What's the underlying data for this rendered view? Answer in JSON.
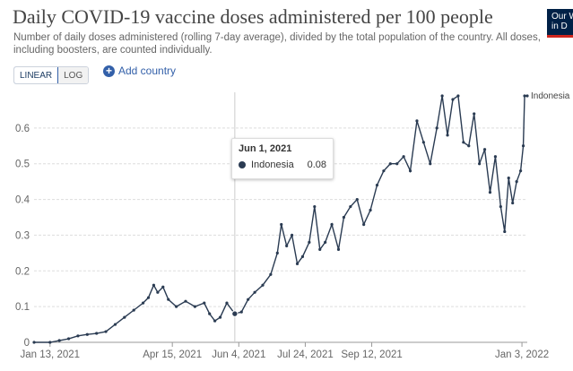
{
  "header": {
    "title": "Daily COVID-19 vaccine doses administered per 100 people",
    "subtitle": "Number of daily doses administered (rolling 7-day average), divided by the total population of the country. All doses, including boosters, are counted individually.",
    "logo_line1": "Our W",
    "logo_line2": "in D"
  },
  "controls": {
    "linear_label": "LINEAR",
    "log_label": "LOG",
    "add_country_label": "Add country"
  },
  "tooltip": {
    "date": "Jun 1, 2021",
    "series": "Indonesia",
    "value": "0.08"
  },
  "colors": {
    "line": "#2a3b52",
    "accent": "#3360a9",
    "grid": "#dddddd"
  },
  "chart_data": {
    "type": "line",
    "title": "Daily COVID-19 vaccine doses administered per 100 people",
    "xlabel": "",
    "ylabel": "",
    "ylim": [
      0,
      0.7
    ],
    "yticks": [
      0,
      0.1,
      0.2,
      0.3,
      0.4,
      0.5,
      0.6
    ],
    "ytick_labels": [
      "0",
      "0.1",
      "0.2",
      "0.3",
      "0.4",
      "0.5",
      "0.6"
    ],
    "xticks": [
      "2021-01-13",
      "2021-04-15",
      "2021-06-04",
      "2021-07-24",
      "2021-09-12",
      "2022-01-03"
    ],
    "xtick_labels": [
      "Jan 13, 2021",
      "Apr 15, 2021",
      "Jun 4, 2021",
      "Jul 24, 2021",
      "Sep 12, 2021",
      "Jan 3, 2022"
    ],
    "xrange": [
      "2021-01-01",
      "2022-01-07"
    ],
    "grid": true,
    "hover_date": "2021-06-01",
    "series": [
      {
        "name": "Indonesia",
        "points": [
          [
            "2021-01-01",
            0.0
          ],
          [
            "2021-01-13",
            0.0
          ],
          [
            "2021-01-20",
            0.005
          ],
          [
            "2021-01-27",
            0.01
          ],
          [
            "2021-02-03",
            0.018
          ],
          [
            "2021-02-10",
            0.022
          ],
          [
            "2021-02-17",
            0.025
          ],
          [
            "2021-02-24",
            0.03
          ],
          [
            "2021-03-03",
            0.05
          ],
          [
            "2021-03-10",
            0.07
          ],
          [
            "2021-03-17",
            0.09
          ],
          [
            "2021-03-24",
            0.11
          ],
          [
            "2021-03-28",
            0.125
          ],
          [
            "2021-04-01",
            0.16
          ],
          [
            "2021-04-04",
            0.14
          ],
          [
            "2021-04-08",
            0.155
          ],
          [
            "2021-04-12",
            0.12
          ],
          [
            "2021-04-18",
            0.1
          ],
          [
            "2021-04-25",
            0.115
          ],
          [
            "2021-05-02",
            0.1
          ],
          [
            "2021-05-09",
            0.11
          ],
          [
            "2021-05-13",
            0.08
          ],
          [
            "2021-05-17",
            0.06
          ],
          [
            "2021-05-21",
            0.07
          ],
          [
            "2021-05-26",
            0.11
          ],
          [
            "2021-06-01",
            0.08
          ],
          [
            "2021-06-06",
            0.085
          ],
          [
            "2021-06-11",
            0.12
          ],
          [
            "2021-06-16",
            0.14
          ],
          [
            "2021-06-22",
            0.16
          ],
          [
            "2021-06-28",
            0.19
          ],
          [
            "2021-07-03",
            0.25
          ],
          [
            "2021-07-06",
            0.33
          ],
          [
            "2021-07-10",
            0.27
          ],
          [
            "2021-07-14",
            0.3
          ],
          [
            "2021-07-18",
            0.22
          ],
          [
            "2021-07-22",
            0.24
          ],
          [
            "2021-07-27",
            0.28
          ],
          [
            "2021-07-31",
            0.38
          ],
          [
            "2021-08-04",
            0.26
          ],
          [
            "2021-08-08",
            0.28
          ],
          [
            "2021-08-13",
            0.33
          ],
          [
            "2021-08-18",
            0.26
          ],
          [
            "2021-08-22",
            0.35
          ],
          [
            "2021-08-27",
            0.38
          ],
          [
            "2021-09-01",
            0.4
          ],
          [
            "2021-09-06",
            0.33
          ],
          [
            "2021-09-11",
            0.37
          ],
          [
            "2021-09-16",
            0.44
          ],
          [
            "2021-09-21",
            0.48
          ],
          [
            "2021-09-26",
            0.5
          ],
          [
            "2021-10-01",
            0.5
          ],
          [
            "2021-10-06",
            0.52
          ],
          [
            "2021-10-11",
            0.48
          ],
          [
            "2021-10-16",
            0.62
          ],
          [
            "2021-10-21",
            0.56
          ],
          [
            "2021-10-26",
            0.5
          ],
          [
            "2021-10-31",
            0.6
          ],
          [
            "2021-11-04",
            0.69
          ],
          [
            "2021-11-08",
            0.58
          ],
          [
            "2021-11-12",
            0.68
          ],
          [
            "2021-11-16",
            0.69
          ],
          [
            "2021-11-20",
            0.56
          ],
          [
            "2021-11-24",
            0.55
          ],
          [
            "2021-11-28",
            0.64
          ],
          [
            "2021-12-02",
            0.5
          ],
          [
            "2021-12-06",
            0.54
          ],
          [
            "2021-12-10",
            0.42
          ],
          [
            "2021-12-14",
            0.52
          ],
          [
            "2021-12-18",
            0.38
          ],
          [
            "2021-12-21",
            0.31
          ],
          [
            "2021-12-24",
            0.46
          ],
          [
            "2021-12-27",
            0.39
          ],
          [
            "2021-12-30",
            0.45
          ],
          [
            "2022-01-02",
            0.48
          ],
          [
            "2022-01-04",
            0.55
          ],
          [
            "2022-01-05",
            0.69
          ],
          [
            "2022-01-07",
            0.69
          ]
        ]
      }
    ]
  }
}
